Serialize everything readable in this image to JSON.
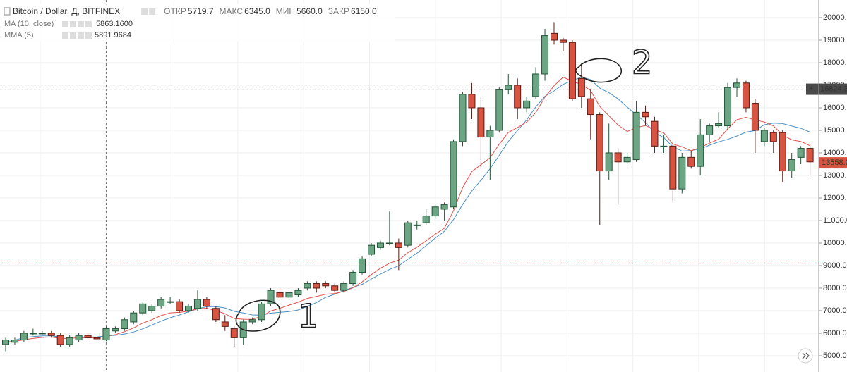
{
  "chart_data": {
    "type": "candlestick",
    "title": "Bitcoin / Dollar, Д, BITFINEX",
    "ohlc_readout": [
      {
        "name": "ОТКР",
        "value": 5719.7
      },
      {
        "name": "МАКС",
        "value": {
          "value": 6345,
          "label": "6345.0"
        }
      },
      {
        "name": "МИН",
        "value": {
          "value": 5660,
          "label": "5660.0"
        }
      },
      {
        "name": "ЗАКР",
        "value": {
          "value": 6150,
          "label": "6150.0"
        }
      }
    ],
    "open": [
      5500,
      5600,
      5700,
      6000,
      6000,
      6000,
      5900,
      5500,
      5700,
      5900,
      5800,
      5700,
      6100,
      6200,
      6500,
      6900,
      7000,
      7200,
      7400,
      7400,
      7000,
      7100,
      7500,
      7100,
      6500,
      6200,
      5800,
      6500,
      6600,
      7300,
      7800,
      7600,
      7700,
      8000,
      8200,
      8200,
      8100,
      7900,
      8200,
      8700,
      9500,
      9800,
      10000,
      10000,
      9900,
      10800,
      10900,
      11200,
      11500,
      11600,
      14500,
      16600,
      16000,
      14700,
      15000,
      16800,
      17000,
      16000,
      16500,
      17500,
      19300,
      19000,
      18900,
      17300,
      16400,
      15700,
      13200,
      14000,
      13600,
      13700,
      15800,
      15400,
      14300,
      14300,
      12400,
      13800,
      13400,
      14800,
      15200,
      15200,
      16900,
      17100,
      16200,
      14500,
      14900,
      14900,
      13200,
      13800,
      14200
    ],
    "high": [
      5800,
      5800,
      6100,
      6200,
      6100,
      6100,
      6000,
      5900,
      6000,
      6000,
      5900,
      6300,
      6300,
      6700,
      7000,
      7400,
      7300,
      7600,
      7600,
      7500,
      7300,
      7900,
      7600,
      7200,
      6800,
      6300,
      6600,
      6700,
      7400,
      8000,
      8000,
      7900,
      8000,
      8300,
      8300,
      8300,
      8200,
      8300,
      8800,
      9400,
      10000,
      10100,
      11400,
      10200,
      11000,
      11000,
      11500,
      11700,
      11800,
      14600,
      16700,
      17100,
      16500,
      15200,
      16900,
      17500,
      17300,
      16500,
      17800,
      19500,
      19800,
      19100,
      19000,
      18000,
      16800,
      15800,
      15300,
      14200,
      14000,
      16300,
      16100,
      15600,
      14800,
      14400,
      14000,
      14100,
      15500,
      15300,
      15800,
      17100,
      17300,
      17200,
      16400,
      15100,
      15000,
      15000,
      14000,
      14300,
      14400
    ],
    "low": [
      5200,
      5500,
      5600,
      5900,
      5900,
      5800,
      5400,
      5400,
      5600,
      5700,
      5700,
      5650,
      6000,
      6100,
      6400,
      6800,
      6900,
      7100,
      7300,
      6900,
      6900,
      7000,
      7100,
      6500,
      6100,
      5400,
      5500,
      6400,
      6500,
      7200,
      7500,
      7500,
      7600,
      7900,
      7800,
      8000,
      7800,
      7800,
      8100,
      8600,
      9400,
      9700,
      9900,
      8800,
      9800,
      10600,
      10800,
      11100,
      11000,
      11500,
      14300,
      15500,
      13300,
      12800,
      14900,
      16600,
      15500,
      15800,
      16400,
      17200,
      18800,
      18500,
      16300,
      16000,
      14600,
      10800,
      12800,
      11700,
      13500,
      13600,
      15200,
      14000,
      14000,
      11800,
      12200,
      13300,
      13000,
      14500,
      15100,
      15000,
      16500,
      15800,
      14000,
      14300,
      14000,
      12700,
      12900,
      13500,
      13000
    ],
    "close": [
      5700,
      5700,
      6000,
      6000,
      6000,
      5900,
      5500,
      5800,
      5900,
      5800,
      5750,
      6200,
      6200,
      6600,
      6900,
      7300,
      7200,
      7500,
      7400,
      7000,
      7200,
      7500,
      7200,
      6600,
      6300,
      5800,
      6500,
      6600,
      7300,
      7900,
      7600,
      7800,
      7900,
      8200,
      8000,
      8100,
      7900,
      8200,
      8700,
      9300,
      9900,
      10000,
      10000,
      9800,
      10900,
      10800,
      11200,
      11600,
      11700,
      14500,
      16600,
      16000,
      14700,
      15000,
      16800,
      17000,
      16000,
      16300,
      17500,
      19200,
      19000,
      18900,
      16400,
      16500,
      15700,
      13200,
      14000,
      13600,
      13800,
      15800,
      15600,
      14300,
      14300,
      12400,
      13800,
      13400,
      14800,
      15200,
      15300,
      16900,
      17100,
      16000,
      15000,
      15000,
      14500,
      13200,
      13700,
      14200,
      13600
    ],
    "series": [
      {
        "name": "MA (10, close)",
        "color": "#4a8fc4",
        "readout": {
          "value": 5863.16,
          "label": "5863.1600"
        },
        "values": [
          5700,
          5700,
          5800,
          5850,
          5880,
          5883,
          5829,
          5825,
          5833,
          5830,
          5835,
          5885,
          5905,
          5965,
          6055,
          6195,
          6365,
          6535,
          6685,
          6805,
          6950,
          7080,
          7180,
          7180,
          7120,
          6970,
          6900,
          6810,
          6800,
          6890,
          6930,
          6960,
          7030,
          7190,
          7360,
          7590,
          7730,
          7890,
          8030,
          8170,
          8400,
          8620,
          8830,
          8990,
          9280,
          9550,
          9880,
          10220,
          10520,
          11040,
          11710,
          12310,
          12780,
          13300,
          13890,
          14510,
          14990,
          15460,
          16040,
          16510,
          16750,
          17040,
          17210,
          17360,
          17250,
          16870,
          16670,
          16400,
          16030,
          15690,
          15350,
          14890,
          14680,
          14270,
          14080,
          14100,
          14180,
          14340,
          14490,
          14600,
          14750,
          14920,
          14990,
          15250,
          15320,
          15300,
          15190,
          15090,
          14920
        ]
      },
      {
        "name": "MMA (5)",
        "color": "#e0504a",
        "readout": 5891.9684,
        "values": [
          5620,
          5636,
          5709,
          5767,
          5814,
          5831,
          5765,
          5772,
          5798,
          5798,
          5788,
          5871,
          5937,
          6069,
          6235,
          6448,
          6598,
          6779,
          6903,
          6923,
          6978,
          7083,
          7106,
          7005,
          6864,
          6651,
          6621,
          6617,
          6753,
          6983,
          7106,
          7245,
          7376,
          7541,
          7633,
          7726,
          7761,
          7849,
          8019,
          8275,
          8600,
          8880,
          9104,
          9243,
          9574,
          9819,
          10095,
          10396,
          10657,
          11426,
          12461,
          13169,
          13475,
          13780,
          14384,
          14907,
          15126,
          15361,
          15789,
          16471,
          16977,
          17362,
          17170,
          17036,
          16769,
          16055,
          15644,
          15235,
          14948,
          15118,
          15214,
          15031,
          14885,
          14388,
          14270,
          14096,
          14237,
          14430,
          14604,
          15063,
          15470,
          15576,
          15461,
          15369,
          15195,
          14796,
          14577,
          14502,
          14321
        ]
      }
    ],
    "ylim": [
      4280,
      20780
    ],
    "yticks": [
      {
        "value": 5000,
        "label": "5000.0"
      },
      {
        "value": 6000,
        "label": "6000.0"
      },
      {
        "value": 7000,
        "label": "7000.0"
      },
      {
        "value": 8000,
        "label": "8000.0"
      },
      {
        "value": 9000,
        "label": "9000.0"
      },
      {
        "value": 10000,
        "label": "10000.0"
      },
      {
        "value": 11000,
        "label": "11000.0"
      },
      {
        "value": 12000,
        "label": "12000.0"
      },
      {
        "value": 13000,
        "label": "13000.0"
      },
      {
        "value": 14000,
        "label": "14000.0"
      },
      {
        "value": 15000,
        "label": "15000.0"
      },
      {
        "value": 16000,
        "label": "16000.0"
      },
      {
        "value": 17000,
        "label": "17000.0"
      },
      {
        "value": 18000,
        "label": "18000.0"
      },
      {
        "value": 19000,
        "label": "19000.0"
      },
      {
        "value": 20000,
        "label": "20000.0"
      }
    ],
    "grid": true,
    "crosshair_price": 16824.3,
    "last_price": {
      "value": 13558,
      "label": "13558.0"
    },
    "alert_line": 9200,
    "colors": {
      "up": "#6ba583",
      "up_border": "#225437",
      "down": "#d75442",
      "down_border": "#5b1a13"
    },
    "annotations": [
      "1",
      "2"
    ]
  }
}
